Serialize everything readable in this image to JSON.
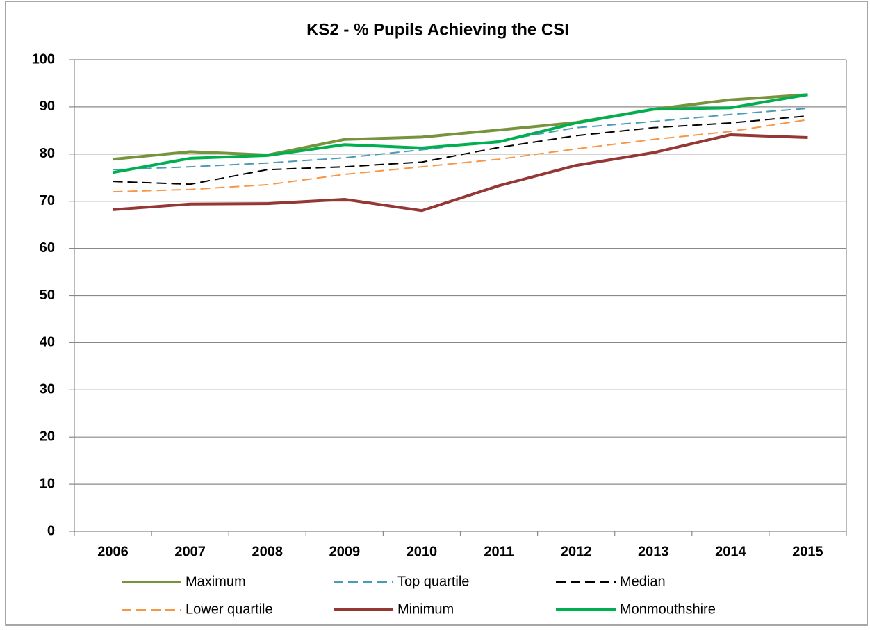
{
  "chart_data": {
    "type": "line",
    "title": "KS2 - % Pupils Achieving the CSI",
    "categories": [
      "2006",
      "2007",
      "2008",
      "2009",
      "2010",
      "2011",
      "2012",
      "2013",
      "2014",
      "2015"
    ],
    "ylim": [
      0,
      100
    ],
    "yticks": [
      0,
      10,
      20,
      30,
      40,
      50,
      60,
      70,
      80,
      90,
      100
    ],
    "grid": true,
    "series": [
      {
        "name": "Maximum",
        "color": "#77933c",
        "dash": false,
        "values": [
          78.9,
          80.5,
          79.8,
          83.1,
          83.6,
          85.1,
          86.7,
          89.5,
          91.5,
          92.6
        ]
      },
      {
        "name": "Top quartile",
        "color": "#4a9bb5",
        "dash": true,
        "values": [
          76.7,
          77.3,
          78.1,
          79.2,
          80.9,
          82.8,
          85.6,
          86.9,
          88.4,
          89.7
        ]
      },
      {
        "name": "Median",
        "color": "#000000",
        "dash": true,
        "values": [
          74.2,
          73.6,
          76.7,
          77.3,
          78.3,
          81.4,
          83.9,
          85.6,
          86.6,
          88.1
        ]
      },
      {
        "name": "Lower quartile",
        "color": "#f79646",
        "dash": true,
        "values": [
          72.0,
          72.5,
          73.5,
          75.7,
          77.3,
          78.9,
          81.1,
          83.1,
          84.8,
          87.3
        ]
      },
      {
        "name": "Minimum",
        "color": "#953735",
        "dash": false,
        "values": [
          68.2,
          69.4,
          69.5,
          70.4,
          68.0,
          73.3,
          77.6,
          80.3,
          84.1,
          83.5
        ]
      },
      {
        "name": "Monmouthshire",
        "color": "#00b050",
        "dash": false,
        "values": [
          76.1,
          79.1,
          79.7,
          82.0,
          81.3,
          82.6,
          86.6,
          89.5,
          89.8,
          92.6
        ]
      }
    ]
  }
}
